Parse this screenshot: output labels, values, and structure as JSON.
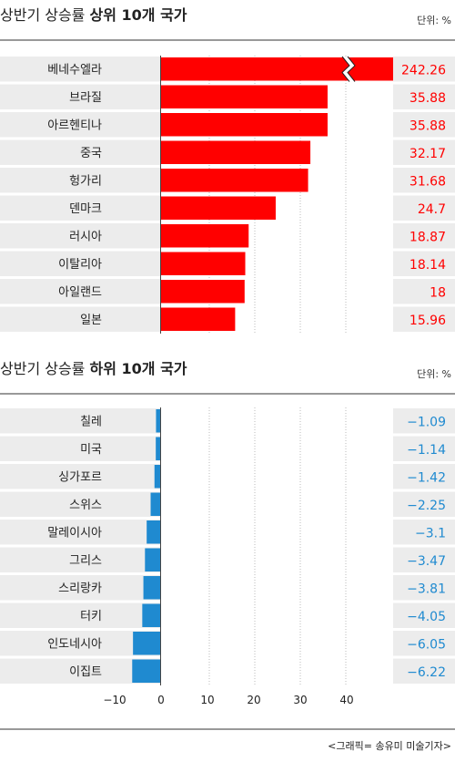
{
  "chart_data": [
    {
      "type": "bar",
      "orientation": "horizontal",
      "title_prefix": "상반기 상승률 ",
      "title_bold": "상위 10개 국가",
      "unit_label": "단위: %",
      "categories": [
        "베네수엘라",
        "브라질",
        "아르헨티나",
        "중국",
        "헝가리",
        "덴마크",
        "러시아",
        "이탈리아",
        "아일랜드",
        "일본"
      ],
      "values": [
        242.26,
        35.88,
        35.88,
        32.17,
        31.68,
        24.7,
        18.87,
        18.14,
        18,
        15.96
      ],
      "value_labels": [
        "242.26",
        "35.88",
        "35.88",
        "32.17",
        "31.68",
        "24.7",
        "18.87",
        "18.14",
        "18",
        "15.96"
      ],
      "axis_break_on_first_bar": true,
      "xlim": [
        -10,
        50
      ],
      "bar_color": "#ff0000",
      "label_color": "#ff0000"
    },
    {
      "type": "bar",
      "orientation": "horizontal",
      "title_prefix": "상반기 상승률 ",
      "title_bold": "하위 10개 국가",
      "unit_label": "단위: %",
      "categories": [
        "칠레",
        "미국",
        "싱가포르",
        "스위스",
        "말레이시아",
        "그리스",
        "스리랑카",
        "터키",
        "인도네시아",
        "이집트"
      ],
      "values": [
        -1.09,
        -1.14,
        -1.42,
        -2.25,
        -3.1,
        -3.47,
        -3.81,
        -4.05,
        -6.05,
        -6.22
      ],
      "value_labels": [
        "−1.09",
        "−1.14",
        "−1.42",
        "−2.25",
        "−3.1",
        "−3.47",
        "−3.81",
        "−4.05",
        "−6.05",
        "−6.22"
      ],
      "xlim": [
        -10,
        50
      ],
      "x_ticks": [
        -10,
        0,
        10,
        20,
        30,
        40
      ],
      "x_tick_labels": [
        "−10",
        "0",
        "10",
        "20",
        "30",
        "40"
      ],
      "bar_color": "#1f8ad0",
      "label_color": "#1f8ad0"
    }
  ],
  "credit": "<그래픽= 송유미 미술기자>"
}
